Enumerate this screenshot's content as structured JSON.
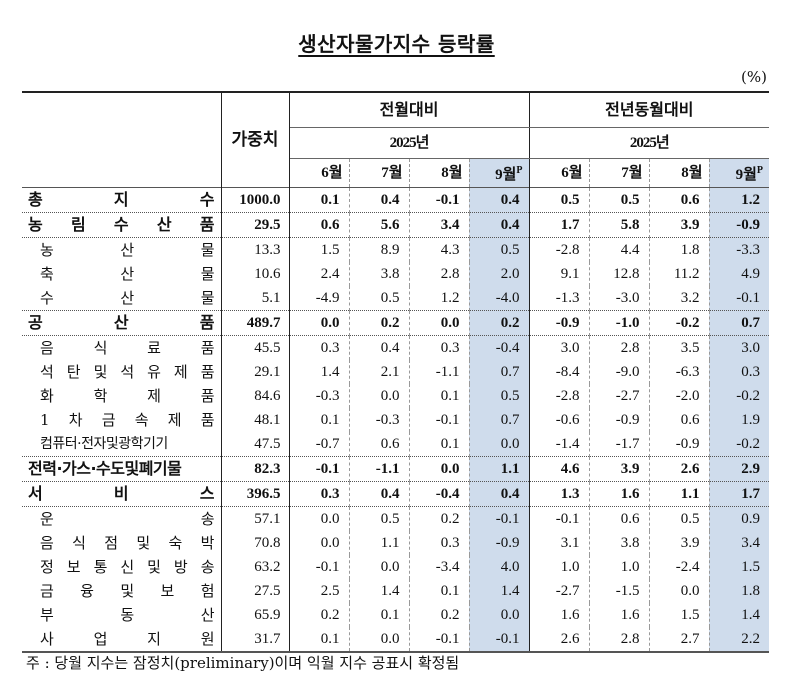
{
  "title": "생산자물가지수 등락률",
  "unit": "(%)",
  "header": {
    "weight_label": "가중치",
    "groups": [
      {
        "label": "전월대비",
        "year": "2025년",
        "months": [
          "6월",
          "7월",
          "8월",
          "9월"
        ]
      },
      {
        "label": "전년동월대비",
        "year": "2025년",
        "months": [
          "6월",
          "7월",
          "8월",
          "9월"
        ]
      }
    ],
    "preliminary_mark": "P"
  },
  "rows": [
    {
      "label": "총 지 수",
      "level": "major",
      "weight": "1000.0",
      "mom": [
        "0.1",
        "0.4",
        "-0.1",
        "0.4"
      ],
      "yoy": [
        "0.5",
        "0.5",
        "0.6",
        "1.2"
      ]
    },
    {
      "label": "농 림 수 산 품",
      "level": "major",
      "weight": "29.5",
      "mom": [
        "0.6",
        "5.6",
        "3.4",
        "0.4"
      ],
      "yoy": [
        "1.7",
        "5.8",
        "3.9",
        "-0.9"
      ]
    },
    {
      "label": "농 산 물",
      "level": "sub",
      "weight": "13.3",
      "mom": [
        "1.5",
        "8.9",
        "4.3",
        "0.5"
      ],
      "yoy": [
        "-2.8",
        "4.4",
        "1.8",
        "-3.3"
      ]
    },
    {
      "label": "축 산 물",
      "level": "sub",
      "weight": "10.6",
      "mom": [
        "2.4",
        "3.8",
        "2.8",
        "2.0"
      ],
      "yoy": [
        "9.1",
        "12.8",
        "11.2",
        "4.9"
      ]
    },
    {
      "label": "수 산 물",
      "level": "sub",
      "weight": "5.1",
      "mom": [
        "-4.9",
        "0.5",
        "1.2",
        "-4.0"
      ],
      "yoy": [
        "-1.3",
        "-3.0",
        "3.2",
        "-0.1"
      ]
    },
    {
      "label": "공 산 품",
      "level": "major",
      "weight": "489.7",
      "mom": [
        "0.0",
        "0.2",
        "0.0",
        "0.2"
      ],
      "yoy": [
        "-0.9",
        "-1.0",
        "-0.2",
        "0.7"
      ]
    },
    {
      "label": "음 식 료 품",
      "level": "sub",
      "weight": "45.5",
      "mom": [
        "0.3",
        "0.4",
        "0.3",
        "-0.4"
      ],
      "yoy": [
        "3.0",
        "2.8",
        "3.5",
        "3.0"
      ]
    },
    {
      "label": "석 탄 및 석 유 제 품",
      "level": "sub",
      "weight": "29.1",
      "mom": [
        "1.4",
        "2.1",
        "-1.1",
        "0.7"
      ],
      "yoy": [
        "-8.4",
        "-9.0",
        "-6.3",
        "0.3"
      ]
    },
    {
      "label": "화 학 제 품",
      "level": "sub",
      "weight": "84.6",
      "mom": [
        "-0.3",
        "0.0",
        "0.1",
        "0.5"
      ],
      "yoy": [
        "-2.8",
        "-2.7",
        "-2.0",
        "-0.2"
      ]
    },
    {
      "label": "1 차 금 속 제 품",
      "level": "sub",
      "weight": "48.1",
      "mom": [
        "0.1",
        "-0.3",
        "-0.1",
        "0.7"
      ],
      "yoy": [
        "-0.6",
        "-0.9",
        "0.6",
        "1.9"
      ]
    },
    {
      "label": "컴퓨터·전자및광학기기",
      "level": "sub",
      "compact": true,
      "weight": "47.5",
      "mom": [
        "-0.7",
        "0.6",
        "0.1",
        "0.0"
      ],
      "yoy": [
        "-1.4",
        "-1.7",
        "-0.9",
        "-0.2"
      ]
    },
    {
      "label": "전력·가스·수도및폐기물",
      "level": "major",
      "compact": true,
      "weight": "82.3",
      "mom": [
        "-0.1",
        "-1.1",
        "0.0",
        "1.1"
      ],
      "yoy": [
        "4.6",
        "3.9",
        "2.6",
        "2.9"
      ]
    },
    {
      "label": "서 비 스",
      "level": "major",
      "weight": "396.5",
      "mom": [
        "0.3",
        "0.4",
        "-0.4",
        "0.4"
      ],
      "yoy": [
        "1.3",
        "1.6",
        "1.1",
        "1.7"
      ]
    },
    {
      "label": "운 송",
      "level": "sub",
      "weight": "57.1",
      "mom": [
        "0.0",
        "0.5",
        "0.2",
        "-0.1"
      ],
      "yoy": [
        "-0.1",
        "0.6",
        "0.5",
        "0.9"
      ]
    },
    {
      "label": "음 식 점 및 숙 박",
      "level": "sub",
      "weight": "70.8",
      "mom": [
        "0.0",
        "1.1",
        "0.3",
        "-0.9"
      ],
      "yoy": [
        "3.1",
        "3.8",
        "3.9",
        "3.4"
      ]
    },
    {
      "label": "정 보 통 신 및 방 송",
      "level": "sub",
      "weight": "63.2",
      "mom": [
        "-0.1",
        "0.0",
        "-3.4",
        "4.0"
      ],
      "yoy": [
        "1.0",
        "1.0",
        "-2.4",
        "1.5"
      ]
    },
    {
      "label": "금 융 및 보 험",
      "level": "sub",
      "weight": "27.5",
      "mom": [
        "2.5",
        "1.4",
        "0.1",
        "1.4"
      ],
      "yoy": [
        "-2.7",
        "-1.5",
        "0.0",
        "1.8"
      ]
    },
    {
      "label": "부 동 산",
      "level": "sub",
      "weight": "65.9",
      "mom": [
        "0.2",
        "0.1",
        "0.2",
        "0.0"
      ],
      "yoy": [
        "1.6",
        "1.6",
        "1.5",
        "1.4"
      ]
    },
    {
      "label": "사 업 지 원",
      "level": "sub",
      "weight": "31.7",
      "mom": [
        "0.1",
        "0.0",
        "-0.1",
        "-0.1"
      ],
      "yoy": [
        "2.6",
        "2.8",
        "2.7",
        "2.2"
      ]
    }
  ],
  "note": "주 : 당월 지수는 잠정치(preliminary)이며 익월 지수 공표시 확정됨",
  "colors": {
    "highlight_column": "#cfdcec",
    "border": "#222222"
  }
}
